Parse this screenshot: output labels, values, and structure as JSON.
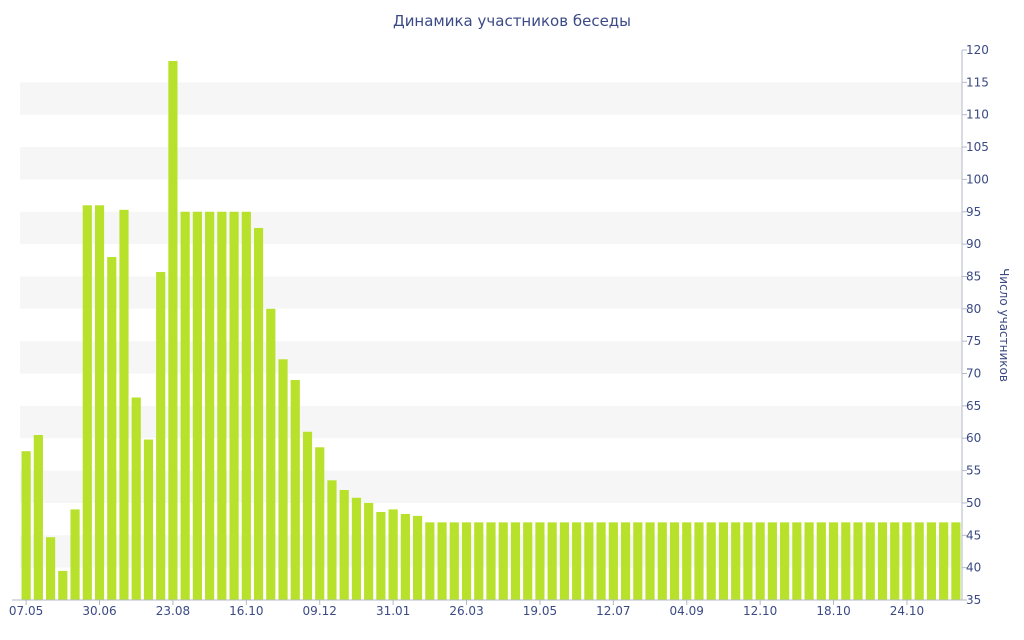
{
  "chart_data": {
    "type": "bar",
    "title": "Динамика участников беседы",
    "ylabel": "Число участников",
    "xlabel": "",
    "ylim": [
      35,
      120
    ],
    "y_ticks": [
      35,
      40,
      45,
      50,
      55,
      60,
      65,
      70,
      75,
      80,
      85,
      90,
      95,
      100,
      105,
      110,
      115,
      120
    ],
    "y_axis_position": "right",
    "grid": "alternating horizontal bands",
    "x_tick_labels": [
      {
        "index": 0,
        "label": "07.05"
      },
      {
        "index": 6,
        "label": "30.06"
      },
      {
        "index": 12,
        "label": "23.08"
      },
      {
        "index": 18,
        "label": "16.10"
      },
      {
        "index": 24,
        "label": "09.12"
      },
      {
        "index": 30,
        "label": "31.01"
      },
      {
        "index": 36,
        "label": "26.03"
      },
      {
        "index": 42,
        "label": "19.05"
      },
      {
        "index": 48,
        "label": "12.07"
      },
      {
        "index": 54,
        "label": "04.09"
      },
      {
        "index": 60,
        "label": "12.10"
      },
      {
        "index": 66,
        "label": "18.10"
      },
      {
        "index": 72,
        "label": "24.10"
      }
    ],
    "values": [
      58,
      60.5,
      44.7,
      39.5,
      49,
      96,
      96,
      88,
      95.3,
      66.3,
      59.8,
      85.7,
      118.3,
      95,
      95,
      95,
      95,
      95,
      95,
      92.5,
      80,
      72.2,
      69,
      61,
      58.6,
      53.5,
      52,
      50.8,
      50,
      48.6,
      49,
      48.3,
      48,
      47,
      47,
      47,
      47,
      47,
      47,
      47,
      47,
      47,
      47,
      47,
      47,
      47,
      47,
      47,
      47,
      47,
      47,
      47,
      47,
      47,
      47,
      47,
      47,
      47,
      47,
      47,
      47,
      47,
      47,
      47,
      47,
      47,
      47,
      47,
      47,
      47,
      47,
      47,
      47,
      47,
      47,
      47,
      47
    ],
    "colors": {
      "bar": "#b8e12c",
      "band": "#f6f6f6",
      "text": "#3b4a85"
    }
  }
}
